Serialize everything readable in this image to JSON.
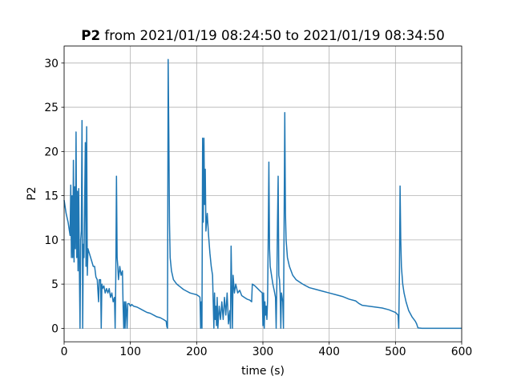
{
  "chart_data": {
    "type": "line",
    "title_bold": "P2",
    "title": "from 2021/01/19 08:24:50 to 2021/01/19 08:34:50",
    "x_label": "time (s)",
    "y_label": "P2",
    "color": "#1f77b4",
    "grid": true,
    "xlim": [
      0,
      600
    ],
    "ylim": [
      -1.52,
      31.92
    ],
    "xticks": [
      0,
      100,
      200,
      300,
      400,
      500,
      600
    ],
    "yticks": [
      0,
      5,
      10,
      15,
      20,
      25,
      30
    ],
    "x": [
      0,
      3,
      6,
      9,
      10,
      11,
      12,
      13,
      14,
      15,
      16,
      17,
      18,
      19,
      20,
      21,
      22,
      23,
      24,
      25,
      26,
      27,
      28,
      29,
      30,
      32,
      33,
      34,
      35,
      36,
      38,
      40,
      42,
      44,
      46,
      48,
      50,
      52,
      53,
      55,
      56,
      57,
      58,
      60,
      62,
      64,
      66,
      68,
      70,
      72,
      74,
      76,
      77,
      78,
      79,
      80,
      81,
      82,
      84,
      86,
      88,
      89,
      90,
      91,
      92,
      93,
      94,
      95,
      96,
      98,
      100,
      102,
      105,
      110,
      115,
      120,
      125,
      130,
      135,
      140,
      145,
      150,
      154,
      155,
      156,
      157,
      158,
      159,
      160,
      162,
      165,
      170,
      175,
      180,
      185,
      190,
      195,
      200,
      204,
      205,
      206,
      207,
      208,
      209,
      210,
      211,
      212,
      213,
      214,
      216,
      218,
      220,
      222,
      224,
      225,
      226,
      227,
      228,
      229,
      230,
      231,
      232,
      234,
      236,
      238,
      240,
      242,
      244,
      246,
      248,
      250,
      251,
      252,
      253,
      254,
      255,
      257,
      259,
      262,
      265,
      268,
      272,
      276,
      280,
      283,
      284,
      288,
      292,
      296,
      299,
      300,
      301,
      302,
      303,
      304,
      305,
      306,
      307,
      308,
      309,
      310,
      311,
      313,
      315,
      317,
      319,
      320,
      321,
      322,
      323,
      324,
      325,
      326,
      327,
      328,
      330,
      331,
      332,
      333,
      334,
      335,
      337,
      340,
      345,
      350,
      360,
      370,
      380,
      390,
      400,
      410,
      420,
      430,
      440,
      445,
      450,
      460,
      470,
      480,
      490,
      500,
      504,
      505,
      506,
      507,
      508,
      509,
      511,
      513,
      516,
      520,
      525,
      530,
      532,
      534,
      540,
      600
    ],
    "values": [
      14.5,
      13,
      12,
      10.5,
      16.2,
      8,
      15,
      8,
      19,
      7.5,
      16,
      9,
      22.2,
      8,
      15.5,
      6.5,
      15.8,
      7,
      0,
      10,
      11,
      23.5,
      0,
      9.5,
      8,
      21,
      7,
      22.8,
      6,
      9,
      8.5,
      8,
      7.5,
      7,
      7,
      5.8,
      5.5,
      3,
      5.5,
      5.5,
      0,
      5,
      4.5,
      4.8,
      4,
      4.5,
      4,
      4.5,
      3.5,
      4,
      3,
      3.5,
      0,
      6,
      17.2,
      8,
      7,
      5.5,
      7,
      6,
      6.5,
      2.5,
      0,
      3,
      0,
      3,
      2,
      0,
      2.8,
      2.8,
      2.5,
      2.7,
      2.5,
      2.4,
      2.2,
      2,
      1.8,
      1.7,
      1.5,
      1.3,
      1.2,
      1,
      0.8,
      0.2,
      0,
      30.4,
      22,
      12,
      8,
      6.5,
      5.5,
      5,
      4.7,
      4.4,
      4.2,
      4,
      3.9,
      3.8,
      3.6,
      3.5,
      0,
      3,
      0,
      21.5,
      12,
      21.5,
      14,
      18,
      11,
      13,
      10.5,
      8.5,
      7,
      6,
      3,
      0,
      4,
      1,
      2.5,
      0.3,
      3.5,
      0,
      2.5,
      1,
      3,
      1,
      3.5,
      1.5,
      4,
      0.5,
      2,
      0,
      9.3,
      4.5,
      0,
      6,
      4,
      5,
      4,
      4.3,
      3.7,
      3.5,
      3.3,
      3.2,
      3,
      5,
      4.8,
      4.5,
      4.2,
      4,
      0.3,
      4,
      0,
      3,
      1.5,
      2.5,
      1,
      3,
      10,
      18.8,
      9,
      7,
      6,
      5,
      4.3,
      3.5,
      0,
      5,
      12,
      17.2,
      6,
      5.5,
      4,
      0,
      4,
      3,
      0,
      12,
      24.4,
      13,
      10,
      8,
      7,
      6,
      5.5,
      5,
      4.6,
      4.4,
      4.2,
      4,
      3.8,
      3.6,
      3.3,
      3.1,
      2.8,
      2.6,
      2.5,
      2.4,
      2.3,
      2.1,
      1.8,
      1.5,
      0,
      6,
      16.1,
      10,
      7,
      5,
      4,
      3,
      2,
      1.3,
      0.8,
      0.5,
      0.05,
      0,
      0
    ]
  }
}
